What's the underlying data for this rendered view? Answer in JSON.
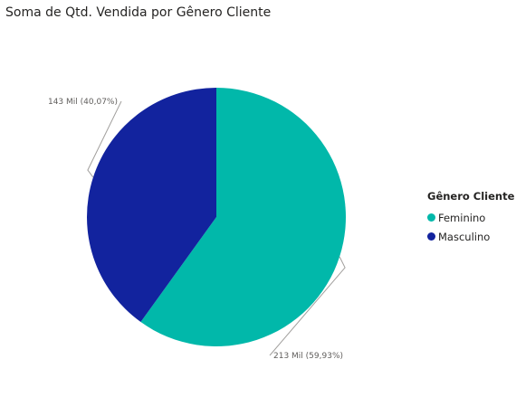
{
  "header": {
    "title": "Soma de Qtd. Vendida por Gênero Cliente"
  },
  "legend": {
    "title": "Gênero Cliente",
    "items": [
      {
        "label": "Feminino",
        "color": "#01B8AA"
      },
      {
        "label": "Masculino",
        "color": "#12239E"
      }
    ]
  },
  "chart_data": {
    "type": "pie",
    "title": "Soma de Qtd. Vendida por Gênero Cliente",
    "legend_title": "Gênero Cliente",
    "legend_position": "right",
    "slices": [
      {
        "label": "Feminino",
        "value": 213,
        "percent": 59.93,
        "data_label": "213 Mil (59,93%)",
        "color": "#01B8AA"
      },
      {
        "label": "Masculino",
        "value": 143,
        "percent": 40.07,
        "data_label": "143 Mil (40,07%)",
        "color": "#12239E"
      }
    ]
  }
}
